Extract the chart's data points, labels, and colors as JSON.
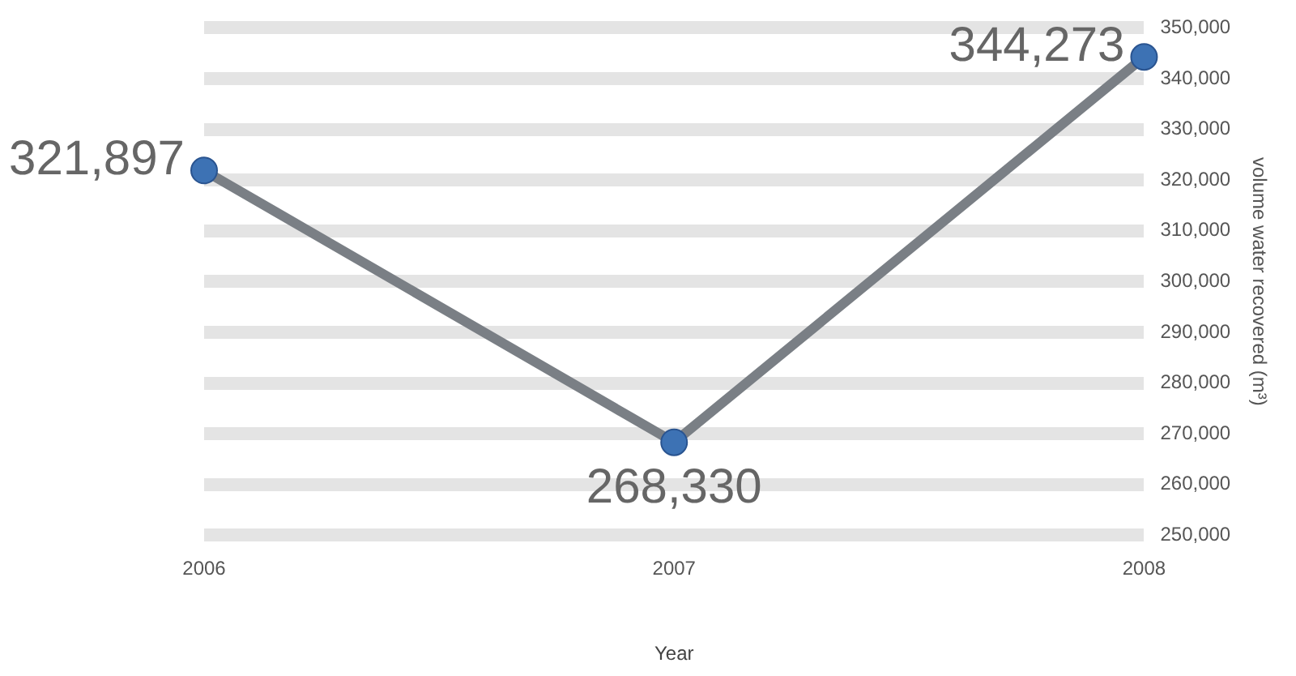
{
  "chart_data": {
    "type": "line",
    "xlabel": "Year",
    "ylabel": "volume water recovered (m³)",
    "categories": [
      "2006",
      "2007",
      "2008"
    ],
    "series": [
      {
        "color": "#7a7f85",
        "values": [
          321897,
          268330,
          344273
        ],
        "value_labels": [
          "321,897",
          "268,330",
          "344,273"
        ]
      }
    ],
    "ylim": [
      250000,
      350000
    ],
    "yticks": [
      {
        "value": 250000,
        "label": "250,000"
      },
      {
        "value": 260000,
        "label": "260,000"
      },
      {
        "value": 270000,
        "label": "270,000"
      },
      {
        "value": 280000,
        "label": "280,000"
      },
      {
        "value": 290000,
        "label": "290,000"
      },
      {
        "value": 300000,
        "label": "300,000"
      },
      {
        "value": 310000,
        "label": "310,000"
      },
      {
        "value": 320000,
        "label": "320,000"
      },
      {
        "value": 330000,
        "label": "330,000"
      },
      {
        "value": 340000,
        "label": "340,000"
      },
      {
        "value": 350000,
        "label": "350,000"
      }
    ],
    "grid": "y",
    "legend": false,
    "marker": "circle",
    "line_style": "solid"
  }
}
